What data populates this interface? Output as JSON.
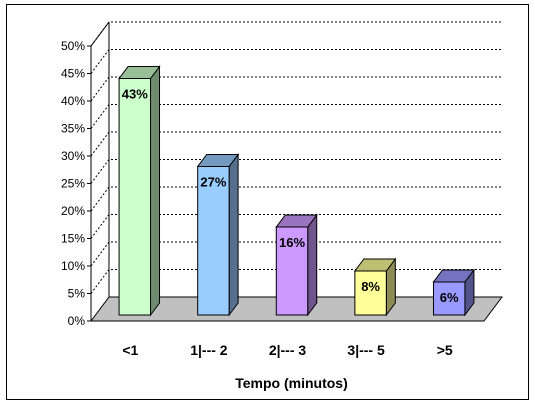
{
  "chart_data": {
    "type": "bar",
    "categories": [
      "<1",
      "1|--- 2",
      "2|--- 3",
      "3|--- 5",
      ">5"
    ],
    "values": [
      43,
      27,
      16,
      8,
      6
    ],
    "data_labels": [
      "43%",
      "27%",
      "16%",
      "8%",
      "6%"
    ],
    "bar_colors": [
      "#ccffcc",
      "#99ccff",
      "#cc99ff",
      "#ffff99",
      "#9999ff"
    ],
    "xlabel": "Tempo (minutos)",
    "ylabel": "",
    "title": "",
    "ylim": [
      0,
      50
    ],
    "y_ticks": [
      0,
      5,
      10,
      15,
      20,
      25,
      30,
      35,
      40,
      45,
      50
    ],
    "y_tick_labels": [
      "0%",
      "5%",
      "10%",
      "15%",
      "20%",
      "25%",
      "30%",
      "35%",
      "40%",
      "45%",
      "50%"
    ],
    "grid": true,
    "grid_style": "dotted",
    "style": "3d",
    "floor_color": "#c0c0c0"
  }
}
